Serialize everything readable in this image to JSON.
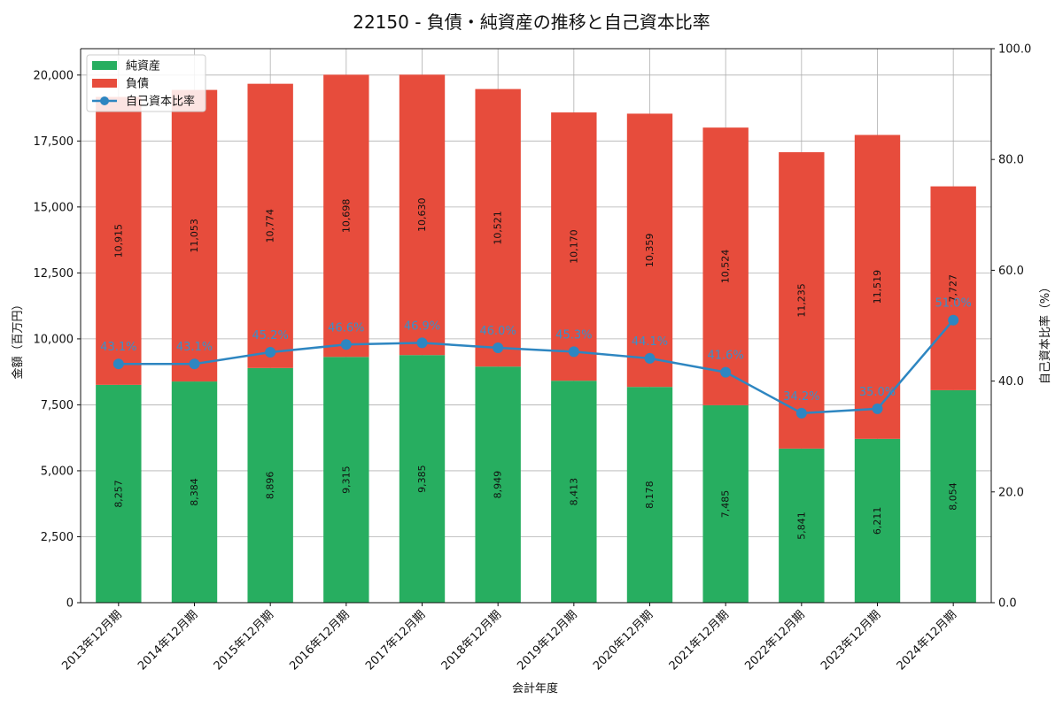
{
  "chart_data": {
    "type": "bar",
    "title": "22150 - 負債・純資産の推移と自己資本比率",
    "xlabel": "会計年度",
    "ylabel": "金額（百万円）",
    "y2label": "自己資本比率（%）",
    "ylim": [
      0,
      21000
    ],
    "y2lim": [
      0,
      100
    ],
    "yticks": [
      0,
      2500,
      5000,
      7500,
      10000,
      12500,
      15000,
      17500,
      20000
    ],
    "y2ticks": [
      0,
      20,
      40,
      60,
      80,
      100
    ],
    "categories": [
      "2013年12月期",
      "2014年12月期",
      "2015年12月期",
      "2016年12月期",
      "2017年12月期",
      "2018年12月期",
      "2019年12月期",
      "2020年12月期",
      "2021年12月期",
      "2022年12月期",
      "2023年12月期",
      "2024年12月期"
    ],
    "series": [
      {
        "name": "純資産",
        "kind": "bar",
        "color": "#27ae60",
        "values": [
          8257,
          8384,
          8896,
          9315,
          9385,
          8949,
          8413,
          8178,
          7485,
          5841,
          6211,
          8054
        ]
      },
      {
        "name": "負債",
        "kind": "bar",
        "color": "#e74c3c",
        "values": [
          10915,
          11053,
          10774,
          10698,
          10630,
          10521,
          10170,
          10359,
          10524,
          11235,
          11519,
          7727
        ]
      },
      {
        "name": "自己資本比率",
        "kind": "line",
        "axis": "right",
        "color": "#2e86c1",
        "values": [
          43.1,
          43.1,
          45.2,
          46.6,
          46.9,
          46.0,
          45.3,
          44.1,
          41.6,
          34.2,
          35.0,
          51.0
        ]
      }
    ],
    "legend": "top-left",
    "grid": true
  }
}
